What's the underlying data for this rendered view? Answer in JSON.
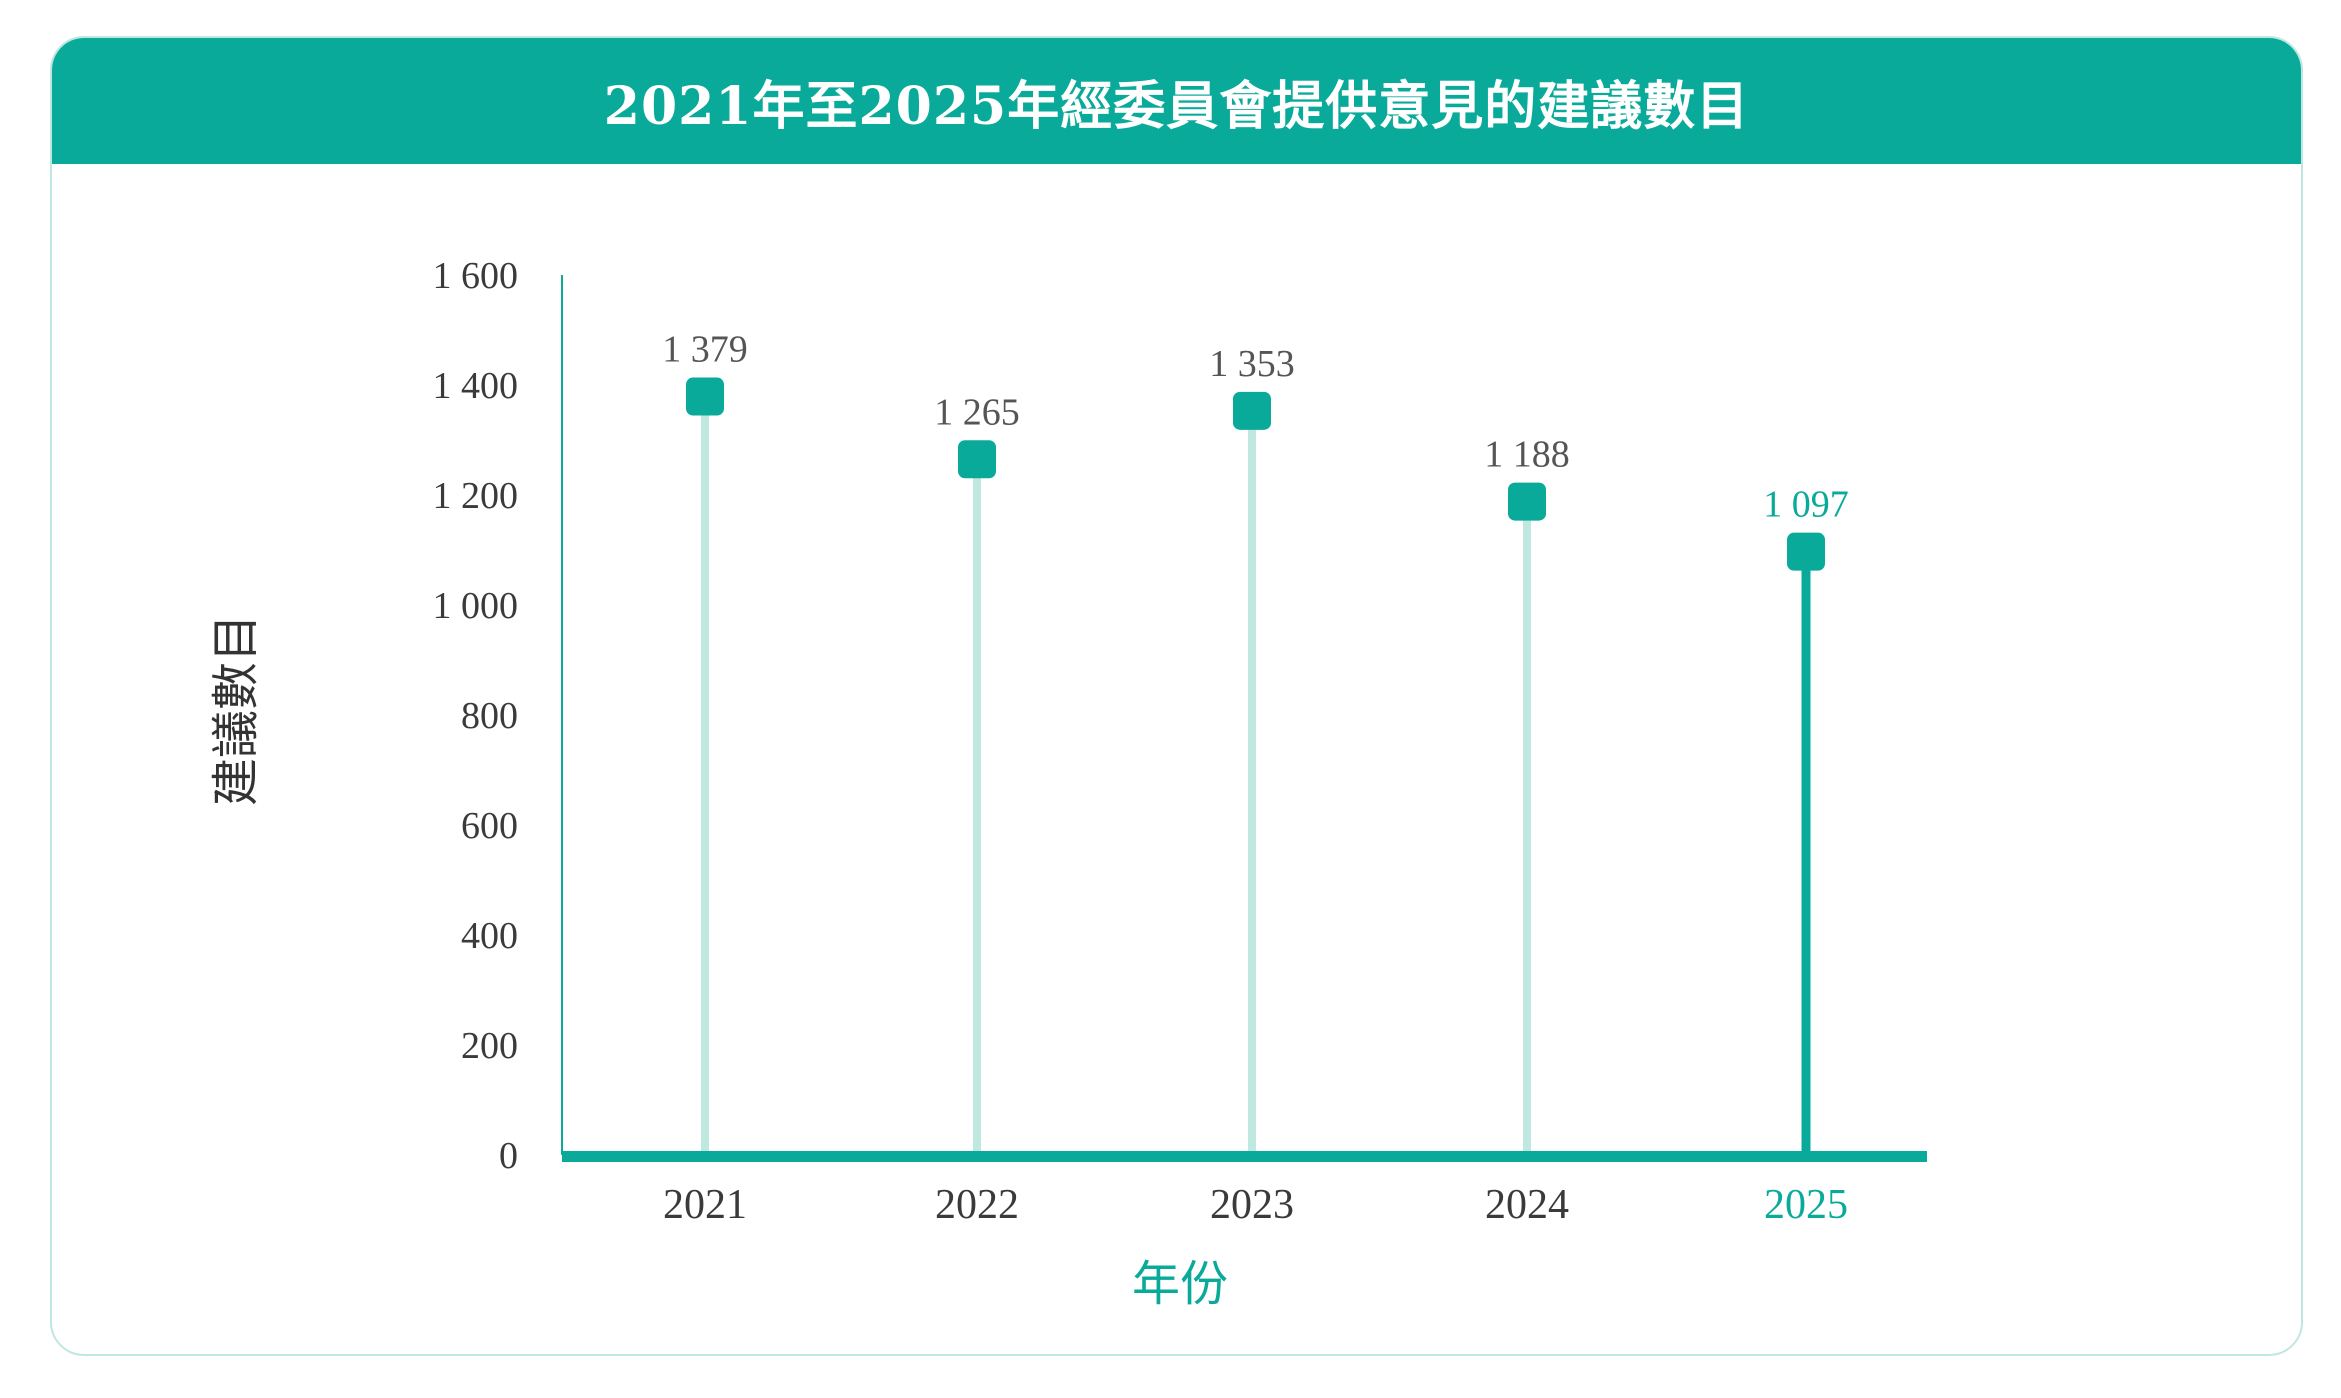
{
  "title": "2021年至2025年經委員會提供意見的建議數目",
  "colors": {
    "accent": "#0aaa9b",
    "stem_light": "#bfe8e0",
    "axis_line": "#0aaa9b",
    "card_border": "#bfe7e1",
    "label_gray": "#555555"
  },
  "chart_data": {
    "type": "bar",
    "title": "2021年至2025年經委員會提供意見的建議數目",
    "xlabel": "年份",
    "ylabel": "建議數目",
    "categories": [
      "2021",
      "2022",
      "2023",
      "2024",
      "2025"
    ],
    "values": [
      1379,
      1265,
      1353,
      1188,
      1097
    ],
    "value_labels": [
      "1 379",
      "1 265",
      "1 353",
      "1 188",
      "1 097"
    ],
    "highlight_index": 4,
    "ylim": [
      0,
      1600
    ],
    "y_ticks": [
      0,
      200,
      400,
      600,
      800,
      1000,
      1200,
      1400,
      1600
    ],
    "y_tick_labels": [
      "0",
      "200",
      "400",
      "600",
      "800",
      "1 000",
      "1 200",
      "1 400",
      "1 600"
    ],
    "grid": false,
    "legend": "none"
  }
}
